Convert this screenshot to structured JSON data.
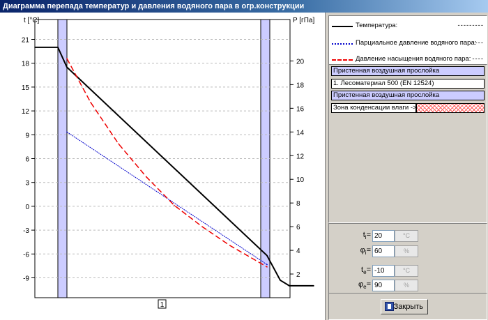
{
  "window": {
    "title": "Диаграмма перепада температур и давления водяного пара в огр.конструкции"
  },
  "chart": {
    "left_axis_label": "t [°C]",
    "right_axis_label": "P [гПа]",
    "left_ticks": [
      21,
      18,
      15,
      12,
      9,
      6,
      3,
      0,
      -3,
      -6,
      -9
    ],
    "right_ticks": [
      20,
      18,
      16,
      14,
      12,
      10,
      8,
      6,
      4,
      2
    ],
    "marker_label": "1",
    "colors": {
      "temperature": "#000000",
      "partial": "#0000cc",
      "saturation": "#ee0000",
      "air_layer": "#ccccff"
    }
  },
  "chart_data": {
    "type": "line",
    "series": [
      {
        "name": "Температура:",
        "axis": "left",
        "x": [
          0,
          33,
          46,
          333,
          352,
          365,
          400
        ],
        "y": [
          20,
          20,
          17.5,
          -6.2,
          -9.3,
          -10,
          -10
        ]
      },
      {
        "name": "Парциальное давление водяного пара:",
        "axis": "right",
        "x": [
          46,
          333
        ],
        "y": [
          14.0,
          2.8
        ]
      },
      {
        "name": "Давление насыщения водяного пара:",
        "axis": "right",
        "x": [
          46,
          80,
          120,
          160,
          200,
          240,
          280,
          333
        ],
        "y": [
          20.2,
          16.5,
          13.0,
          10.2,
          7.8,
          6.0,
          4.4,
          2.6
        ]
      }
    ],
    "ylim_left": [
      -11.5,
      23.5
    ],
    "ylim_right": [
      0,
      23.5
    ]
  },
  "legend": {
    "items": [
      {
        "label": "Температура:",
        "value": "---------"
      },
      {
        "label": "Парциальное давление водяного пара:",
        "value": "----"
      },
      {
        "label": "Давление насыщения водяного пара:",
        "value": "----"
      }
    ]
  },
  "layers": [
    {
      "label": "Пристенная воздушная прослойка",
      "kind": "air"
    },
    {
      "label": "1. Лесоматериал 500 (EN 12524)",
      "kind": "mat"
    },
    {
      "label": "Пристенная воздушная прослойка",
      "kind": "air"
    }
  ],
  "condensation": {
    "label": "Зона конденсации влаги ->"
  },
  "params": {
    "ti": {
      "label": "t",
      "sub": "i",
      "value": "20",
      "unit": "°C"
    },
    "phii": {
      "label": "φ",
      "sub": "i",
      "value": "60",
      "unit": "%"
    },
    "te": {
      "label": "t",
      "sub": "e",
      "value": "-10",
      "unit": "°C"
    },
    "phie": {
      "label": "φ",
      "sub": "e",
      "value": "90",
      "unit": "%"
    }
  },
  "close_button": {
    "label": "Закрыть"
  }
}
